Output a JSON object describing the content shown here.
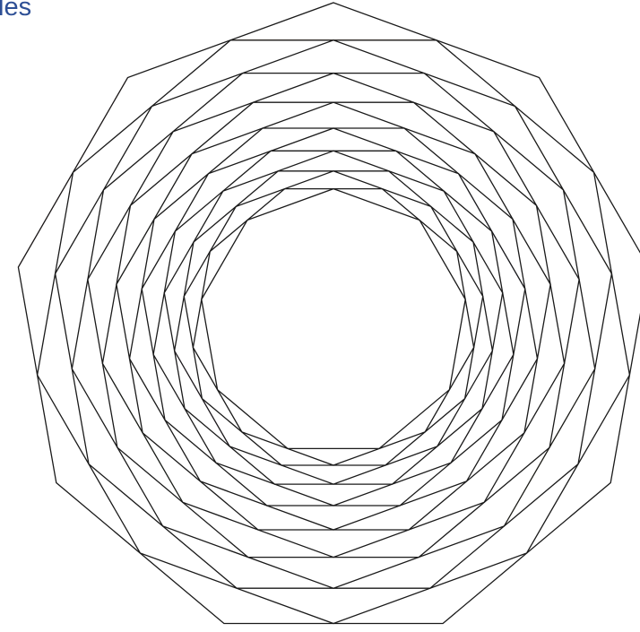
{
  "title": "les",
  "colors": {
    "outline": "#1a1a1a",
    "title": "#2e4f95",
    "triangles": [
      "#e8001e",
      "#f07800",
      "#f5c800",
      "#ffff00",
      "#c8f200",
      "#55f000",
      "#1a5e00",
      "#55f2ff",
      "#0010f5",
      "#780085",
      "#3c0080",
      "#f500f5",
      "#f7b8cc",
      "#cc1440"
    ]
  },
  "figure": {
    "polygon_sides": 9,
    "ring_count": 15,
    "colored_triangles": 14,
    "rotation_per_ring_deg": 20
  }
}
